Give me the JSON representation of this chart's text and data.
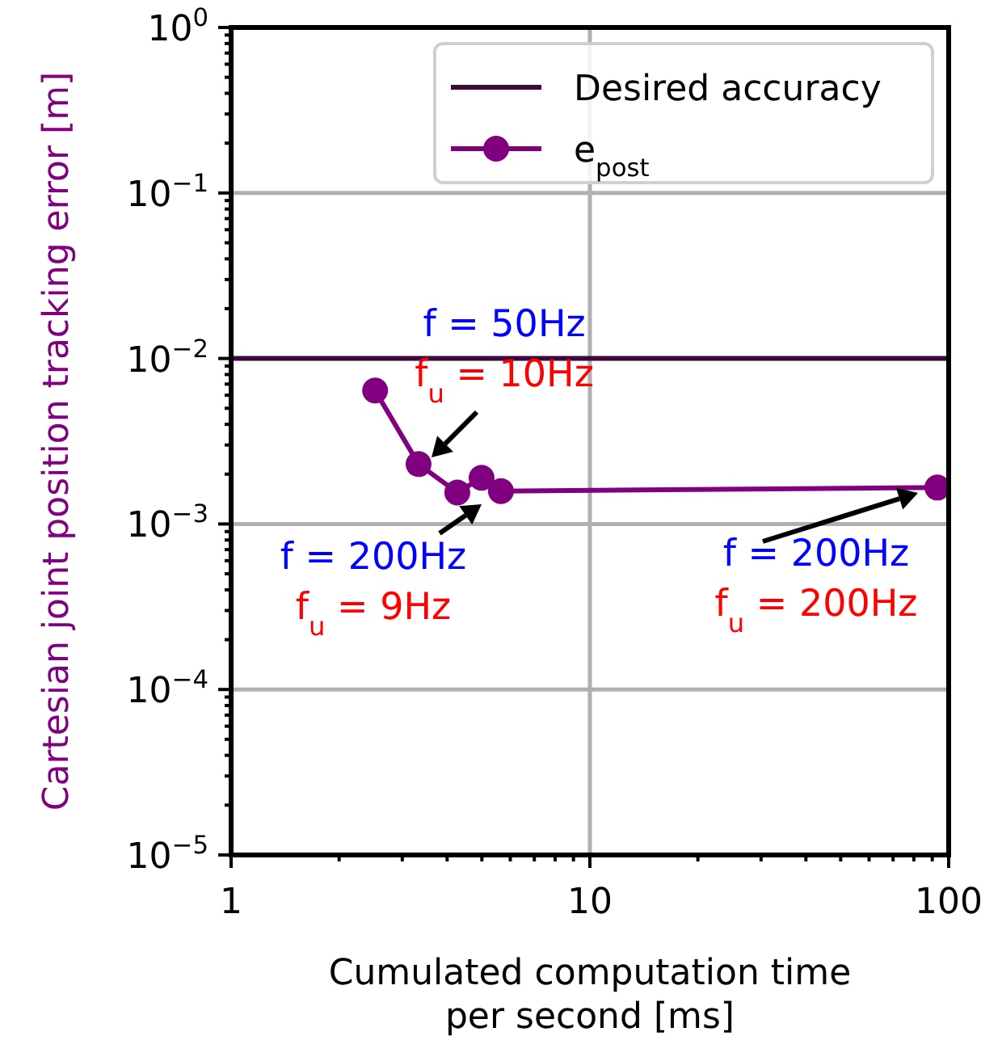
{
  "chart_data": {
    "type": "line",
    "xlabel": "Cumulated computation time\nper second [ms]",
    "ylabel": "Cartesian joint position tracking error [m]",
    "log": "xy",
    "grid": true,
    "legend": "top right",
    "marker": "circle",
    "xlim": [
      1,
      100
    ],
    "ylim": [
      1e-05,
      1
    ],
    "xticks": [
      1,
      {
        "value": 2,
        "label": null
      },
      {
        "value": 3,
        "label": null
      },
      {
        "value": 4,
        "label": null
      },
      {
        "value": 5,
        "label": null
      },
      {
        "value": 6,
        "label": null
      },
      {
        "value": 7,
        "label": null
      },
      {
        "value": 8,
        "label": null
      },
      {
        "value": 9,
        "label": null
      },
      10,
      {
        "value": 20,
        "label": null
      },
      {
        "value": 30,
        "label": null
      },
      {
        "value": 40,
        "label": null
      },
      {
        "value": 50,
        "label": null
      },
      {
        "value": 60,
        "label": null
      },
      {
        "value": 70,
        "label": null
      },
      {
        "value": 80,
        "label": null
      },
      {
        "value": 90,
        "label": null
      },
      100
    ],
    "yticks": [
      {
        "value": 1e-05,
        "label": "10$^{−5}$"
      },
      {
        "value": 2e-05,
        "label": null
      },
      {
        "value": 3e-05,
        "label": null
      },
      {
        "value": 4e-05,
        "label": null
      },
      {
        "value": 5e-05,
        "label": null
      },
      {
        "value": 6e-05,
        "label": null
      },
      {
        "value": 7e-05,
        "label": null
      },
      {
        "value": 8e-05,
        "label": null
      },
      {
        "value": 9e-05,
        "label": null
      },
      {
        "value": 0.0001,
        "label": "10$^{−4}$"
      },
      {
        "value": 0.0002,
        "label": null
      },
      {
        "value": 0.0003,
        "label": null
      },
      {
        "value": 0.0004,
        "label": null
      },
      {
        "value": 0.0005,
        "label": null
      },
      {
        "value": 0.0006,
        "label": null
      },
      {
        "value": 0.0007,
        "label": null
      },
      {
        "value": 0.0008,
        "label": null
      },
      {
        "value": 0.0009,
        "label": null
      },
      {
        "value": 0.001,
        "label": "10$^{−3}$"
      },
      {
        "value": 0.002,
        "label": null
      },
      {
        "value": 0.003,
        "label": null
      },
      {
        "value": 0.004,
        "label": null
      },
      {
        "value": 0.005,
        "label": null
      },
      {
        "value": 0.006,
        "label": null
      },
      {
        "value": 0.007,
        "label": null
      },
      {
        "value": 0.008,
        "label": null
      },
      {
        "value": 0.009,
        "label": null
      },
      {
        "value": 0.01,
        "label": "10$^{−2}$"
      },
      {
        "value": 0.02,
        "label": null
      },
      {
        "value": 0.03,
        "label": null
      },
      {
        "value": 0.04,
        "label": null
      },
      {
        "value": 0.05,
        "label": null
      },
      {
        "value": 0.06,
        "label": null
      },
      {
        "value": 0.07,
        "label": null
      },
      {
        "value": 0.08,
        "label": null
      },
      {
        "value": 0.09,
        "label": null
      },
      {
        "value": 0.1,
        "label": "10$^{−1}$"
      },
      {
        "value": 0.2,
        "label": null
      },
      {
        "value": 0.3,
        "label": null
      },
      {
        "value": 0.4,
        "label": null
      },
      {
        "value": 0.5,
        "label": null
      },
      {
        "value": 0.6,
        "label": null
      },
      {
        "value": 0.7,
        "label": null
      },
      {
        "value": 0.8,
        "label": null
      },
      {
        "value": 0.9,
        "label": null
      },
      {
        "value": 1,
        "label": "10$^{0}$"
      }
    ],
    "series": [
      {
        "name": "Desired accuracy",
        "color": "#3c0a3c",
        "type": "line",
        "marker": "none",
        "x": [
          1,
          100
        ],
        "values": [
          0.01,
          0.01
        ]
      },
      {
        "name": "e$_{post}$",
        "color": "#800080",
        "x": [
          2.52,
          3.33,
          4.27,
          4.99,
          5.65,
          93
        ],
        "values": [
          0.0064,
          0.0023,
          0.00155,
          0.0019,
          0.00158,
          0.00166
        ]
      }
    ],
    "annotations": [
      "f = 50Hz",
      "f$_{u}$ = 10Hz",
      "f = 200Hz",
      "f$_{u}$ = 9Hz",
      "f = 200Hz",
      "f$_{u}$ = 200Hz"
    ]
  }
}
